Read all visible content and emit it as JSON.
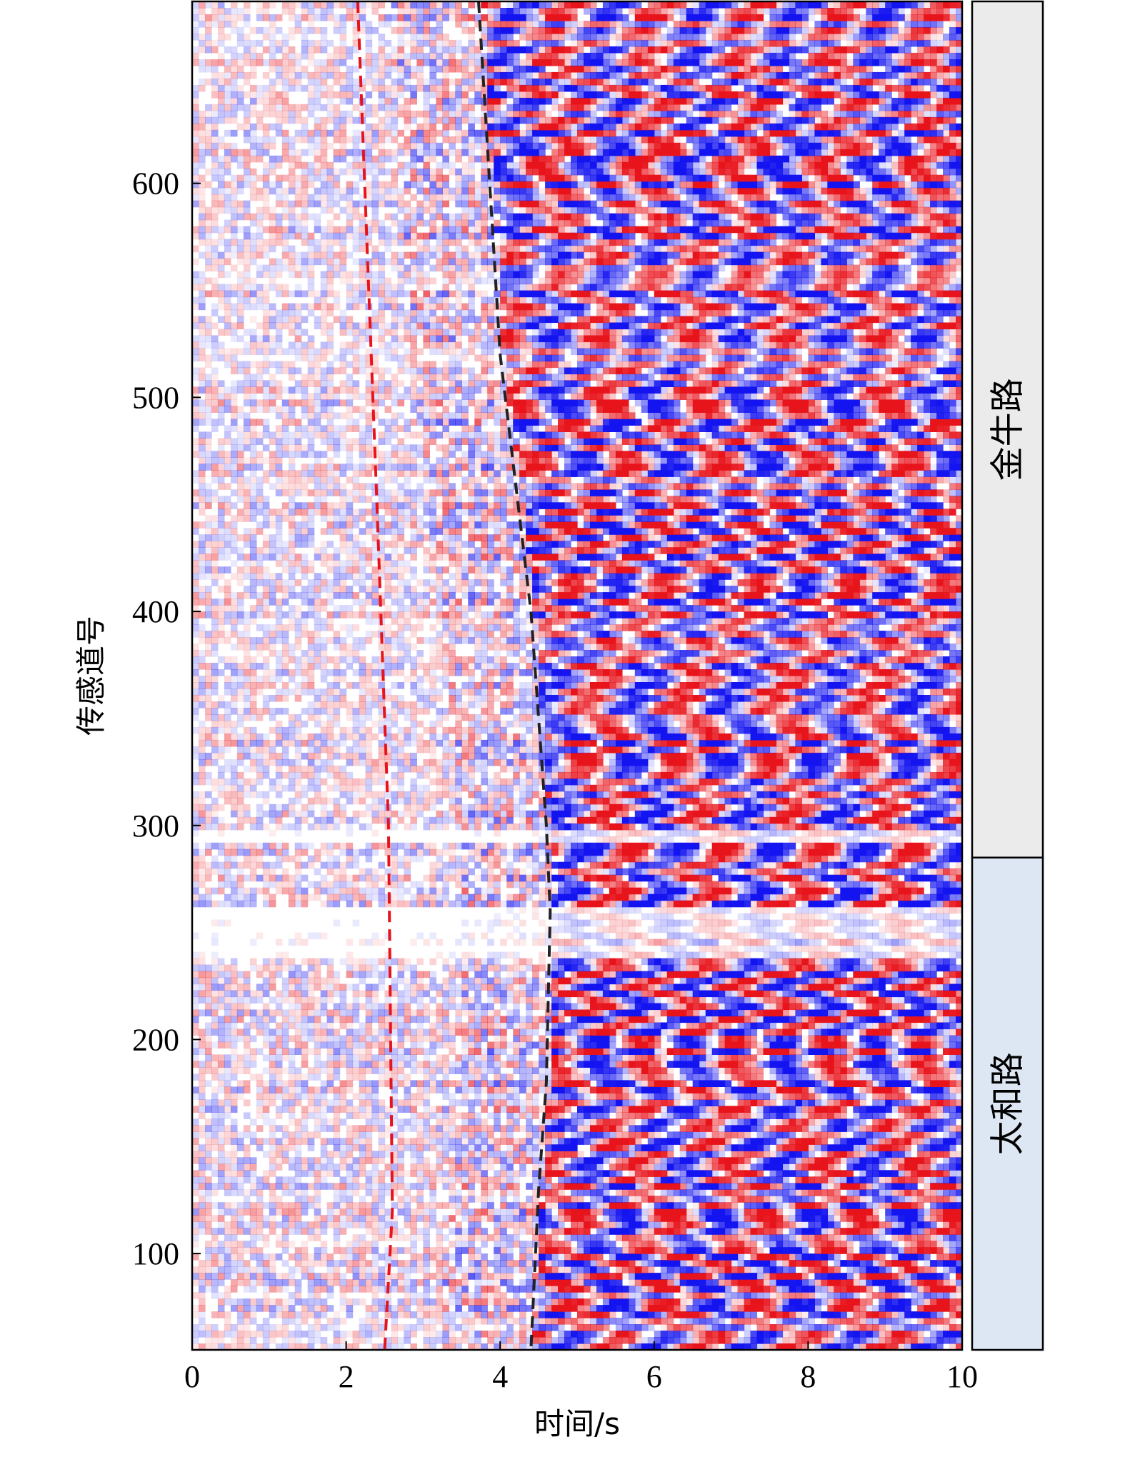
{
  "chart_data": {
    "type": "heatmap",
    "title": "",
    "xlabel": "时间/s",
    "ylabel": "传感道号",
    "xlim": [
      0,
      10
    ],
    "ylim": [
      55,
      685
    ],
    "x_ticks": [
      0,
      2,
      4,
      6,
      8,
      10
    ],
    "y_ticks": [
      100,
      200,
      300,
      400,
      500,
      600
    ],
    "colormap": {
      "positive": "#e8141c",
      "negative": "#1414f0",
      "zero": "#ffffff"
    },
    "arrival_lines": [
      {
        "color": "#e8141c",
        "style": "dashed",
        "points": [
          [
            2.15,
            685
          ],
          [
            2.4,
            450
          ],
          [
            2.55,
            300
          ],
          [
            2.6,
            120
          ],
          [
            2.5,
            55
          ]
        ]
      },
      {
        "color": "#222222",
        "style": "dashed",
        "points": [
          [
            3.72,
            685
          ],
          [
            4.0,
            520
          ],
          [
            4.4,
            400
          ],
          [
            4.6,
            300
          ],
          [
            4.65,
            260
          ],
          [
            4.6,
            180
          ],
          [
            4.5,
            130
          ],
          [
            4.4,
            55
          ]
        ]
      }
    ],
    "road_segments": [
      {
        "label": "金牛路",
        "from": 285,
        "to": 685,
        "color": "#ebebeb"
      },
      {
        "label": "太和路",
        "from": 55,
        "to": 285,
        "color": "#dde7f3"
      }
    ]
  }
}
